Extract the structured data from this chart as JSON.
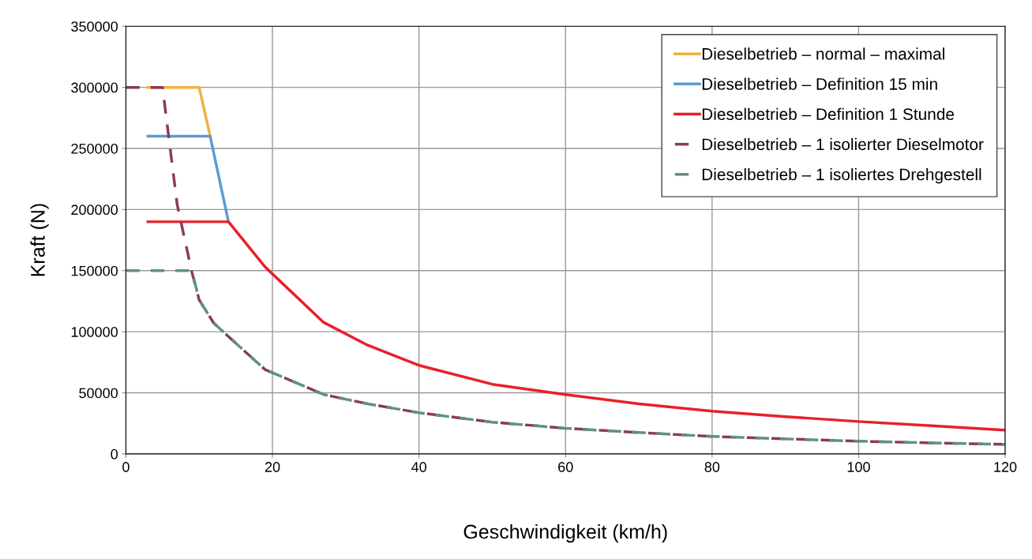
{
  "chart_data": {
    "type": "line",
    "xlabel": "Geschwindigkeit (km/h)",
    "ylabel": "Kraft (N)",
    "xlim": [
      0,
      120
    ],
    "xticks": [
      0,
      20,
      40,
      60,
      80,
      100,
      120
    ],
    "ylim": [
      0,
      350000
    ],
    "yticks": [
      0,
      50000,
      100000,
      150000,
      200000,
      250000,
      300000,
      350000
    ],
    "grid": true,
    "legend": "top right",
    "series": [
      {
        "name": "Dieselbetrieb – normal – maximal",
        "color": "#f0b040",
        "line_style": "solid",
        "x": [
          3,
          10,
          11.5
        ],
        "values": [
          300000,
          300000,
          260000
        ]
      },
      {
        "name": "Dieselbetrieb – Definition 15 min",
        "color": "#5b9bd5",
        "line_style": "solid",
        "x": [
          3,
          11.5,
          14
        ],
        "values": [
          260000,
          260000,
          190000
        ]
      },
      {
        "name": "Dieselbetrieb – Definition 1 Stunde",
        "color": "#e8202a",
        "line_style": "solid",
        "x": [
          3,
          14,
          19,
          27,
          33,
          40,
          50,
          60,
          70,
          80,
          90,
          100,
          110,
          120
        ],
        "values": [
          190000,
          190000,
          153000,
          107600,
          89000,
          72500,
          57000,
          48500,
          41000,
          35000,
          30500,
          26500,
          23000,
          19500
        ]
      },
      {
        "name": "Dieselbetrieb – 1 isolierter Dieselmotor",
        "color": "#8b3a5a",
        "line_style": "dashed",
        "x": [
          0,
          5,
          7,
          9,
          10,
          12,
          14,
          19,
          27,
          33,
          40,
          50,
          60,
          70,
          80,
          90,
          100,
          110,
          120
        ],
        "values": [
          300000,
          300000,
          204000,
          149000,
          126000,
          107000,
          96000,
          69000,
          48600,
          41000,
          33700,
          26000,
          21000,
          17500,
          14300,
          12300,
          10400,
          9000,
          7800
        ]
      },
      {
        "name": "Dieselbetrieb – 1 isoliertes Drehgestell",
        "color": "#5f8f8a",
        "line_style": "dashed",
        "x": [
          0,
          9,
          10,
          12,
          14,
          19,
          27,
          33,
          40,
          50,
          60,
          70,
          80,
          90,
          100,
          110,
          120
        ],
        "values": [
          150000,
          150000,
          126000,
          107000,
          96000,
          69000,
          48600,
          41000,
          33700,
          26000,
          21000,
          17500,
          14300,
          12300,
          10400,
          9000,
          7800
        ]
      }
    ]
  }
}
